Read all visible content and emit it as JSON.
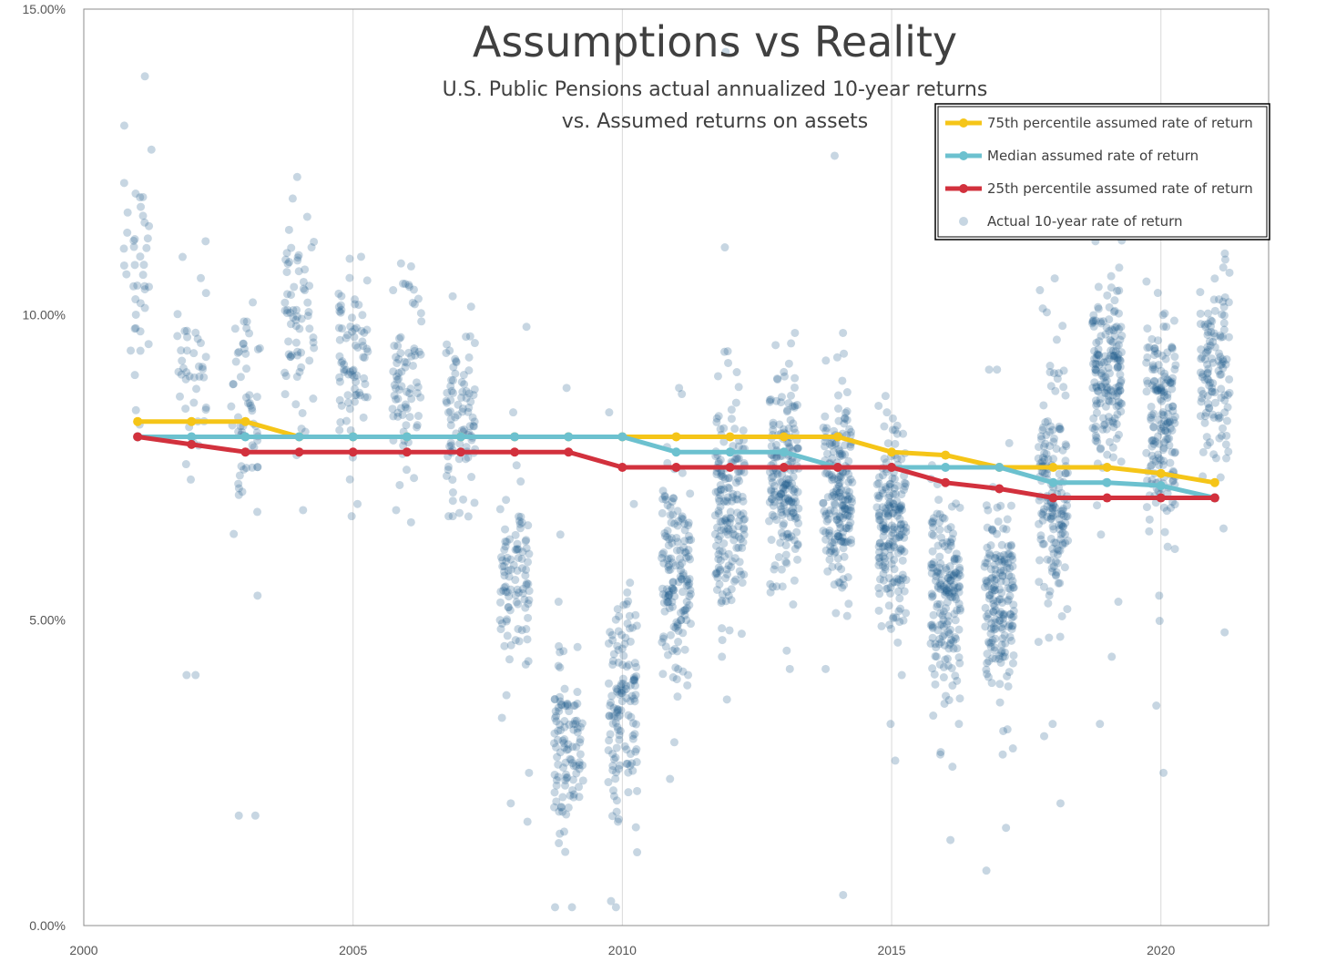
{
  "chart_data": {
    "type": "scatter",
    "title": "Assumptions vs Reality",
    "subtitle_lines": [
      "U.S. Public Pensions actual annualized 10-year returns",
      "vs. Assumed returns on assets"
    ],
    "xlabel": "",
    "ylabel": "",
    "xlim": [
      2000,
      2022
    ],
    "ylim": [
      0,
      15
    ],
    "x_ticks": [
      2000,
      2005,
      2010,
      2015,
      2020
    ],
    "y_ticks": [
      {
        "value": 0,
        "label": "0.00%"
      },
      {
        "value": 5,
        "label": "5.00%"
      },
      {
        "value": 10,
        "label": "10.00%"
      },
      {
        "value": 15,
        "label": "15.00%"
      }
    ],
    "grid": "vertical",
    "legend_position": "top-right",
    "series": [
      {
        "name": "75th percentile assumed rate of return",
        "kind": "line",
        "color": "#F5C518",
        "x": [
          2001,
          2002,
          2003,
          2004,
          2005,
          2006,
          2007,
          2008,
          2009,
          2010,
          2011,
          2012,
          2013,
          2014,
          2015,
          2016,
          2017,
          2018,
          2019,
          2020,
          2021
        ],
        "values": [
          8.25,
          8.25,
          8.25,
          8.0,
          8.0,
          8.0,
          8.0,
          8.0,
          8.0,
          8.0,
          8.0,
          8.0,
          8.0,
          8.0,
          7.75,
          7.7,
          7.5,
          7.5,
          7.5,
          7.4,
          7.25
        ]
      },
      {
        "name": "Median assumed rate of return",
        "kind": "line",
        "color": "#6CC1CF",
        "x": [
          2001,
          2002,
          2003,
          2004,
          2005,
          2006,
          2007,
          2008,
          2009,
          2010,
          2011,
          2012,
          2013,
          2014,
          2015,
          2016,
          2017,
          2018,
          2019,
          2020,
          2021
        ],
        "values": [
          8.0,
          8.0,
          8.0,
          8.0,
          8.0,
          8.0,
          8.0,
          8.0,
          8.0,
          8.0,
          7.75,
          7.75,
          7.75,
          7.5,
          7.5,
          7.5,
          7.5,
          7.25,
          7.25,
          7.2,
          7.0
        ]
      },
      {
        "name": "25th percentile assumed rate of return",
        "kind": "line",
        "color": "#D2313D",
        "x": [
          2001,
          2002,
          2003,
          2004,
          2005,
          2006,
          2007,
          2008,
          2009,
          2010,
          2011,
          2012,
          2013,
          2014,
          2015,
          2016,
          2017,
          2018,
          2019,
          2020,
          2021
        ],
        "values": [
          8.0,
          7.875,
          7.75,
          7.75,
          7.75,
          7.75,
          7.75,
          7.75,
          7.75,
          7.5,
          7.5,
          7.5,
          7.5,
          7.5,
          7.5,
          7.25,
          7.15,
          7.0,
          7.0,
          7.0,
          7.0
        ]
      },
      {
        "name": "Actual 10-year rate of return",
        "kind": "scatter",
        "color": "#1F5C8B",
        "note": "Each x value is a fiscal year; points are jittered horizontally around the year. Distribution per year summarized by center / spread / count and notable outliers.",
        "groups": [
          {
            "x": 2001,
            "center": 10.6,
            "spread": 1.0,
            "count": 40,
            "outliers": [
              13.9,
              12.7,
              8.2
            ]
          },
          {
            "x": 2002,
            "center": 9.2,
            "spread": 0.9,
            "count": 40,
            "outliers": [
              11.2,
              4.1,
              4.1,
              7.3
            ]
          },
          {
            "x": 2003,
            "center": 8.5,
            "spread": 0.8,
            "count": 55,
            "outliers": [
              10.2,
              5.4,
              1.8,
              1.8,
              7.1
            ]
          },
          {
            "x": 2004,
            "center": 9.9,
            "spread": 0.8,
            "count": 65,
            "outliers": [
              11.9,
              7.7,
              6.8
            ]
          },
          {
            "x": 2005,
            "center": 9.3,
            "spread": 0.7,
            "count": 75,
            "outliers": [
              10.6,
              6.9,
              6.7
            ]
          },
          {
            "x": 2006,
            "center": 8.9,
            "spread": 0.7,
            "count": 75,
            "outliers": [
              10.4,
              6.8,
              6.6
            ]
          },
          {
            "x": 2007,
            "center": 8.3,
            "spread": 0.7,
            "count": 85,
            "outliers": [
              10.3,
              6.7,
              6.7
            ]
          },
          {
            "x": 2008,
            "center": 5.6,
            "spread": 0.8,
            "count": 95,
            "outliers": [
              9.8,
              8.4,
              3.4,
              2.5,
              2.0,
              1.7
            ]
          },
          {
            "x": 2009,
            "center": 2.9,
            "spread": 0.7,
            "count": 105,
            "outliers": [
              8.8,
              6.4,
              5.3,
              0.3,
              0.3
            ]
          },
          {
            "x": 2010,
            "center": 3.6,
            "spread": 0.9,
            "count": 130,
            "outliers": [
              8.4,
              6.9,
              1.7,
              1.2,
              0.4,
              0.3
            ]
          },
          {
            "x": 2011,
            "center": 5.7,
            "spread": 0.8,
            "count": 150,
            "outliers": [
              8.8,
              8.7,
              3.0,
              2.4
            ]
          },
          {
            "x": 2012,
            "center": 6.9,
            "spread": 0.9,
            "count": 170,
            "outliers": [
              14.3,
              11.1,
              9.4,
              4.4,
              3.7
            ]
          },
          {
            "x": 2013,
            "center": 7.3,
            "spread": 0.8,
            "count": 185,
            "outliers": [
              9.7,
              9.5,
              4.5,
              4.2
            ]
          },
          {
            "x": 2014,
            "center": 7.1,
            "spread": 0.8,
            "count": 190,
            "outliers": [
              12.6,
              9.7,
              9.3,
              4.2,
              0.5
            ]
          },
          {
            "x": 2015,
            "center": 6.4,
            "spread": 0.8,
            "count": 185,
            "outliers": [
              8.3,
              8.4,
              4.1,
              3.3,
              2.7
            ]
          },
          {
            "x": 2016,
            "center": 5.4,
            "spread": 0.8,
            "count": 180,
            "outliers": [
              3.3,
              2.8,
              2.6,
              1.4
            ]
          },
          {
            "x": 2017,
            "center": 5.3,
            "spread": 0.8,
            "count": 175,
            "outliers": [
              9.1,
              9.1,
              2.9,
              2.8,
              1.6,
              0.9
            ]
          },
          {
            "x": 2018,
            "center": 7.0,
            "spread": 1.1,
            "count": 170,
            "outliers": [
              10.4,
              10.1,
              3.3,
              3.1,
              2.0
            ]
          },
          {
            "x": 2019,
            "center": 9.0,
            "spread": 0.8,
            "count": 175,
            "outliers": [
              11.2,
              6.4,
              5.3,
              4.4,
              3.3
            ]
          },
          {
            "x": 2020,
            "center": 8.2,
            "spread": 0.9,
            "count": 170,
            "outliers": [
              9.9,
              6.2,
              5.4,
              3.6,
              2.5
            ]
          },
          {
            "x": 2021,
            "center": 9.1,
            "spread": 0.8,
            "count": 120,
            "outliers": [
              11.0,
              10.9,
              6.5,
              4.8
            ]
          }
        ]
      }
    ]
  }
}
